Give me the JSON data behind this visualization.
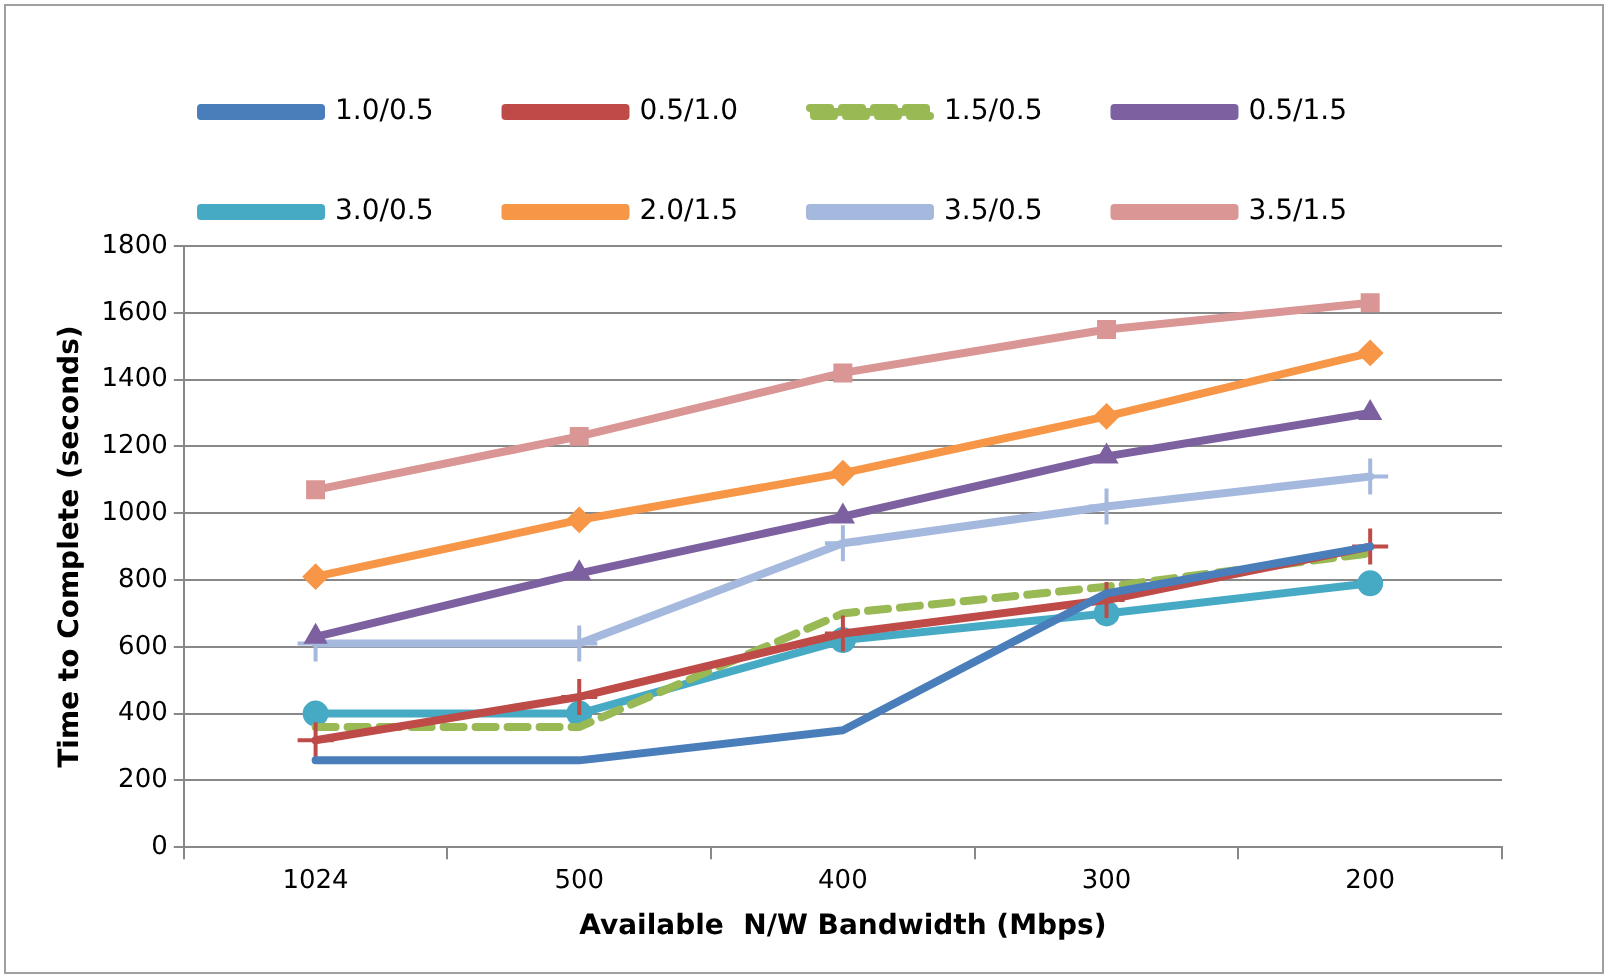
{
  "chart_data": {
    "type": "line",
    "xlabel": "Available  N/W Bandwidth (Mbps)",
    "ylabel": "Time to Complete (seconds)",
    "categories": [
      "1024",
      "500",
      "400",
      "300",
      "200"
    ],
    "ylim": [
      0,
      1800
    ],
    "yticks": [
      0,
      200,
      400,
      600,
      800,
      1000,
      1200,
      1400,
      1600,
      1800
    ],
    "grid": "y",
    "legend": "top",
    "series": [
      {
        "name": "1.0/0.5",
        "color": "#4a7ebb",
        "marker": "none",
        "line_style": "solid",
        "values": [
          260,
          260,
          350,
          760,
          900
        ]
      },
      {
        "name": "0.5/1.0",
        "color": "#be4b48",
        "marker": "cross",
        "line_style": "solid",
        "values": [
          320,
          450,
          640,
          740,
          900
        ]
      },
      {
        "name": "1.5/0.5",
        "color": "#98b954",
        "marker": "none",
        "line_style": "dashed",
        "values": [
          360,
          360,
          700,
          780,
          880
        ]
      },
      {
        "name": "0.5/1.5",
        "color": "#7d60a0",
        "marker": "triangle",
        "line_style": "solid",
        "values": [
          630,
          820,
          990,
          1170,
          1300
        ]
      },
      {
        "name": "3.0/0.5",
        "color": "#46aac5",
        "marker": "circle",
        "line_style": "solid",
        "values": [
          400,
          400,
          620,
          700,
          790
        ]
      },
      {
        "name": "2.0/1.5",
        "color": "#f79646",
        "marker": "diamond",
        "line_style": "solid",
        "values": [
          810,
          980,
          1120,
          1290,
          1480
        ]
      },
      {
        "name": "3.5/0.5",
        "color": "#a5b8dd",
        "marker": "cross",
        "line_style": "solid",
        "values": [
          610,
          610,
          910,
          1020,
          1110
        ]
      },
      {
        "name": "3.5/1.5",
        "color": "#d99694",
        "marker": "square",
        "line_style": "solid",
        "values": [
          1070,
          1230,
          1420,
          1550,
          1630
        ]
      }
    ]
  }
}
